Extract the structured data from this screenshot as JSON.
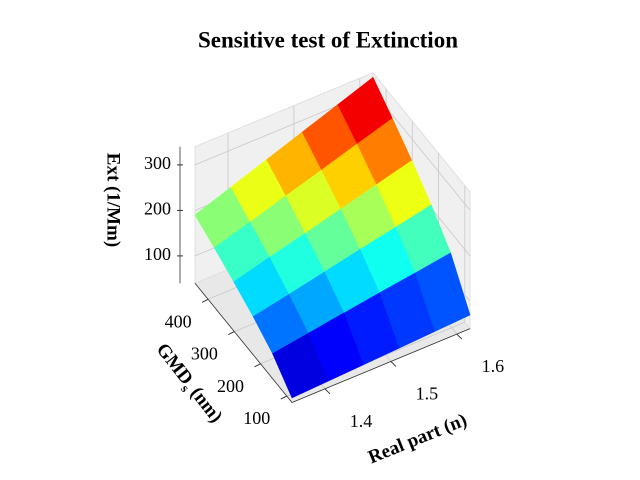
{
  "chart_data": {
    "type": "surface",
    "title": "Sensitive test of Extinction",
    "xlabel": "Real part (n)",
    "ylabel": "GMD",
    "ylabel_sub": "s",
    "ylabel_unit": "(nm)",
    "zlabel": "Ext (1/Mm)",
    "x": [
      1.35,
      1.404,
      1.458,
      1.512,
      1.566,
      1.62
    ],
    "y": [
      80,
      154,
      228,
      302,
      376,
      450
    ],
    "z": [
      [
        50,
        54,
        58,
        62,
        66,
        70
      ],
      [
        95,
        107,
        119,
        131,
        142,
        154
      ],
      [
        124,
        140,
        157,
        174,
        190,
        207
      ],
      [
        148,
        169,
        189,
        210,
        231,
        252
      ],
      [
        170,
        194,
        219,
        243,
        268,
        292
      ],
      [
        190,
        218,
        246,
        274,
        302,
        330
      ]
    ],
    "xlim": [
      1.35,
      1.62
    ],
    "ylim": [
      80,
      450
    ],
    "zlim": [
      40,
      340
    ],
    "xticks": [
      1.4,
      1.5,
      1.6
    ],
    "yticks": [
      100,
      200,
      300,
      400
    ],
    "zticks": [
      100,
      200,
      300
    ],
    "colormap": "jet",
    "grid": true
  }
}
